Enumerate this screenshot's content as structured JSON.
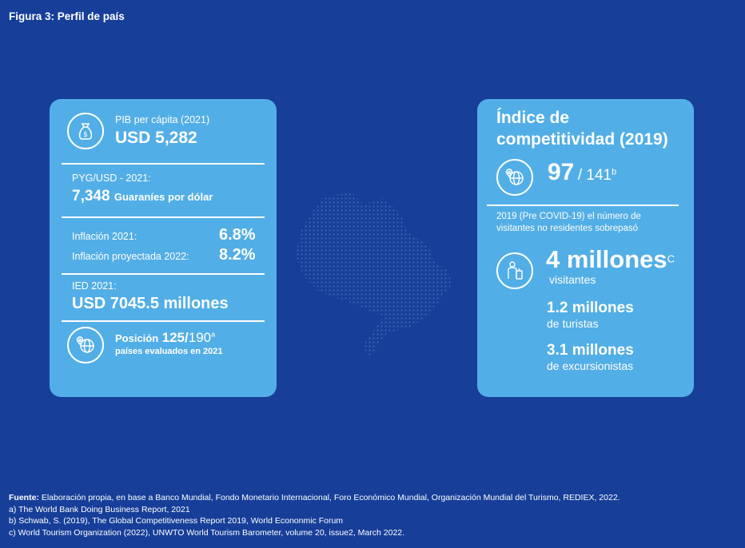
{
  "figure_title": "Figura 3: Perfil de país",
  "left_card": {
    "pib_label": "PIB per cápita (2021)",
    "pib_value": "USD 5,282",
    "pyg_label": "PYG/USD - 2021:",
    "pyg_value": "7,348",
    "pyg_unit": "Guaraníes por dólar",
    "inflation_label": "Inflación 2021:",
    "inflation_value": "6.8%",
    "inflation_proj_label": "Inflación proyectada 2022:",
    "inflation_proj_value": "8.2%",
    "ied_label": "IED 2021:",
    "ied_value": "USD 7045.5 millones",
    "position_label": "Posición",
    "position_rank": "125/",
    "position_total": "190",
    "position_note": "a",
    "position_desc": "países evaluados en 2021"
  },
  "right_card": {
    "title_line1": "Índice de",
    "title_line2": "competitividad (2019)",
    "rank": "97",
    "rank_total": "/ 141",
    "rank_note": "b",
    "visitors_desc_line1": "2019 (Pre COVID-19) el número de",
    "visitors_desc_line2": "visitantes no residentes sobrepasó",
    "visitors_value": "4 millones",
    "visitors_note": "C",
    "visitors_label": "visitantes",
    "tourists_value": "1.2 millones",
    "tourists_label": "de turistas",
    "excursionists_value": "3.1 millones",
    "excursionists_label": "de excursionistas"
  },
  "icons": [
    "money-bag-icon",
    "globe-pin-icon",
    "globe-pin-icon",
    "traveler-icon"
  ],
  "footer": {
    "source_label": "Fuente:",
    "source_text": " Elaboración propia, en base a Banco Mundial, Fondo Monetario Internacional, Foro Económico Mundial,  Organización Mundial del Turismo, REDIEX, 2022.",
    "note_a": "a) The World Bank Doing Business Report, 2021",
    "note_b": "b) Schwab, S. (2019), The Global Competitiveness Report 2019, World Econonmic Forum",
    "note_c": "c) World Tourism Organization (2022), UNWTO World Tourism Barometer, volume 20, issue2, March 2022."
  },
  "colors": {
    "background": "#173f99",
    "card": "#52aee6",
    "map_dots": "#3a66b8"
  }
}
